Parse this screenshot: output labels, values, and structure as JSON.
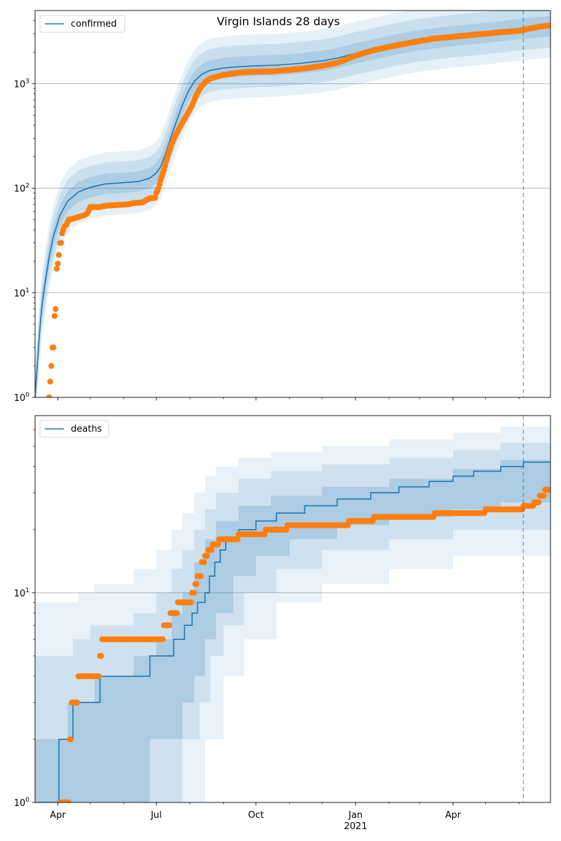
{
  "figure": {
    "title": "Virgin Islands 28 days"
  },
  "colors": {
    "model": "#1f77b4",
    "observed": "#ff7f0e",
    "band": "#1f77b4",
    "grid": "#b0b0b0",
    "vline": "#1f77b4"
  },
  "x_axis": {
    "ticks": [
      {
        "label": "Apr",
        "date": "2020-04-01"
      },
      {
        "label": "Jul",
        "date": "2020-07-01"
      },
      {
        "label": "Oct",
        "date": "2020-10-01"
      },
      {
        "label": "Jan",
        "sublabel": "2021",
        "date": "2021-01-01"
      },
      {
        "label": "Apr",
        "date": "2021-04-01"
      }
    ],
    "range": [
      "2020-03-11",
      "2021-06-30"
    ],
    "forecast_start": "2021-06-05"
  },
  "chart_data": [
    {
      "type": "line",
      "name": "confirmed",
      "legend": "confirmed",
      "legend_position": "top-left",
      "y_scale": "log",
      "ylim": [
        1,
        5000
      ],
      "y_ticks": [
        {
          "value": 1,
          "base": "10",
          "exp": "0"
        },
        {
          "value": 10,
          "base": "10",
          "exp": "1"
        },
        {
          "value": 100,
          "base": "10",
          "exp": "2"
        },
        {
          "value": 1000,
          "base": "10",
          "exp": "3"
        }
      ],
      "grid": "horizontal",
      "model_line": [
        [
          "2020-03-11",
          1
        ],
        [
          "2020-03-13",
          2
        ],
        [
          "2020-03-15",
          4
        ],
        [
          "2020-03-17",
          7
        ],
        [
          "2020-03-20",
          12
        ],
        [
          "2020-03-24",
          22
        ],
        [
          "2020-03-28",
          35
        ],
        [
          "2020-04-03",
          55
        ],
        [
          "2020-04-10",
          75
        ],
        [
          "2020-04-20",
          92
        ],
        [
          "2020-05-01",
          102
        ],
        [
          "2020-05-15",
          110
        ],
        [
          "2020-06-01",
          113
        ],
        [
          "2020-06-15",
          116
        ],
        [
          "2020-06-25",
          125
        ],
        [
          "2020-07-01",
          140
        ],
        [
          "2020-07-05",
          160
        ],
        [
          "2020-07-10",
          220
        ],
        [
          "2020-07-15",
          320
        ],
        [
          "2020-07-20",
          450
        ],
        [
          "2020-07-25",
          620
        ],
        [
          "2020-07-30",
          820
        ],
        [
          "2020-08-05",
          1050
        ],
        [
          "2020-08-12",
          1230
        ],
        [
          "2020-08-20",
          1340
        ],
        [
          "2020-09-01",
          1410
        ],
        [
          "2020-09-15",
          1450
        ],
        [
          "2020-10-01",
          1480
        ],
        [
          "2020-10-20",
          1500
        ],
        [
          "2020-11-10",
          1560
        ],
        [
          "2020-12-01",
          1650
        ],
        [
          "2020-12-15",
          1750
        ],
        [
          "2021-01-01",
          1950
        ],
        [
          "2021-01-20",
          2150
        ],
        [
          "2021-02-10",
          2400
        ],
        [
          "2021-03-01",
          2600
        ],
        [
          "2021-04-01",
          2850
        ],
        [
          "2021-05-01",
          3050
        ],
        [
          "2021-06-05",
          3350
        ],
        [
          "2021-06-30",
          3550
        ]
      ],
      "band_factors": [
        1.25,
        1.6,
        2.0
      ],
      "observed": [
        [
          "2020-03-24",
          1
        ],
        [
          "2020-03-26",
          2
        ],
        [
          "2020-03-27",
          3
        ],
        [
          "2020-03-28",
          3
        ],
        [
          "2020-03-29",
          6
        ],
        [
          "2020-03-30",
          7
        ],
        [
          "2020-03-31",
          17
        ],
        [
          "2020-04-01",
          19
        ],
        [
          "2020-04-02",
          23
        ],
        [
          "2020-04-03",
          30
        ],
        [
          "2020-04-04",
          30
        ],
        [
          "2020-04-05",
          37
        ],
        [
          "2020-04-06",
          40
        ],
        [
          "2020-04-07",
          43
        ],
        [
          "2020-04-09",
          45
        ],
        [
          "2020-04-11",
          50
        ],
        [
          "2020-04-15",
          51
        ],
        [
          "2020-04-20",
          53
        ],
        [
          "2020-04-25",
          55
        ],
        [
          "2020-04-28",
          57
        ],
        [
          "2020-05-01",
          66
        ],
        [
          "2020-05-10",
          66
        ],
        [
          "2020-05-15",
          68
        ],
        [
          "2020-05-25",
          69
        ],
        [
          "2020-06-05",
          70
        ],
        [
          "2020-06-10",
          72
        ],
        [
          "2020-06-18",
          73
        ],
        [
          "2020-06-25",
          80
        ],
        [
          "2020-06-30",
          81
        ],
        [
          "2020-07-01",
          90
        ],
        [
          "2020-07-03",
          100
        ],
        [
          "2020-07-05",
          120
        ],
        [
          "2020-07-08",
          150
        ],
        [
          "2020-07-10",
          180
        ],
        [
          "2020-07-12",
          210
        ],
        [
          "2020-07-15",
          260
        ],
        [
          "2020-07-18",
          310
        ],
        [
          "2020-07-22",
          370
        ],
        [
          "2020-07-26",
          440
        ],
        [
          "2020-07-30",
          520
        ],
        [
          "2020-08-03",
          620
        ],
        [
          "2020-08-07",
          780
        ],
        [
          "2020-08-11",
          920
        ],
        [
          "2020-08-15",
          1030
        ],
        [
          "2020-08-20",
          1120
        ],
        [
          "2020-08-25",
          1160
        ],
        [
          "2020-09-01",
          1210
        ],
        [
          "2020-09-10",
          1250
        ],
        [
          "2020-09-20",
          1290
        ],
        [
          "2020-10-01",
          1300
        ],
        [
          "2020-10-15",
          1310
        ],
        [
          "2020-11-01",
          1350
        ],
        [
          "2020-11-15",
          1400
        ],
        [
          "2020-12-01",
          1480
        ],
        [
          "2020-12-15",
          1580
        ],
        [
          "2021-01-01",
          1850
        ],
        [
          "2021-01-15",
          2050
        ],
        [
          "2021-02-01",
          2250
        ],
        [
          "2021-02-15",
          2400
        ],
        [
          "2021-03-01",
          2550
        ],
        [
          "2021-03-15",
          2700
        ],
        [
          "2021-04-01",
          2800
        ],
        [
          "2021-04-15",
          2900
        ],
        [
          "2021-05-01",
          3000
        ],
        [
          "2021-05-15",
          3100
        ],
        [
          "2021-06-01",
          3200
        ],
        [
          "2021-06-10",
          3350
        ],
        [
          "2021-06-20",
          3500
        ],
        [
          "2021-06-30",
          3600
        ]
      ]
    },
    {
      "type": "line",
      "name": "deaths",
      "legend": "deaths",
      "legend_position": "top-left",
      "y_scale": "log",
      "ylim": [
        1,
        70
      ],
      "y_ticks": [
        {
          "value": 1,
          "base": "10",
          "exp": "0"
        },
        {
          "value": 10,
          "base": "10",
          "exp": "1"
        }
      ],
      "grid": "horizontal",
      "model_steps": [
        [
          "2020-03-11",
          1
        ],
        [
          "2020-04-02",
          2
        ],
        [
          "2020-04-15",
          3
        ],
        [
          "2020-05-10",
          4
        ],
        [
          "2020-06-25",
          5
        ],
        [
          "2020-07-17",
          6
        ],
        [
          "2020-07-27",
          7
        ],
        [
          "2020-08-03",
          8
        ],
        [
          "2020-08-08",
          9
        ],
        [
          "2020-08-15",
          10
        ],
        [
          "2020-08-19",
          12
        ],
        [
          "2020-08-24",
          14
        ],
        [
          "2020-08-29",
          16
        ],
        [
          "2020-09-03",
          18
        ],
        [
          "2020-09-15",
          20
        ],
        [
          "2020-10-01",
          22
        ],
        [
          "2020-10-20",
          24
        ],
        [
          "2020-11-15",
          26
        ],
        [
          "2020-12-15",
          28
        ],
        [
          "2021-01-15",
          30
        ],
        [
          "2021-02-10",
          32
        ],
        [
          "2021-03-10",
          34
        ],
        [
          "2021-04-01",
          36
        ],
        [
          "2021-04-20",
          38
        ],
        [
          "2021-05-15",
          40
        ],
        [
          "2021-06-05",
          42
        ],
        [
          "2021-06-30",
          42
        ]
      ],
      "bands": [
        {
          "opacity": 0.2,
          "lower": [
            [
              "2020-03-11",
              1
            ],
            [
              "2020-06-15",
              1
            ],
            [
              "2020-06-25",
              2
            ],
            [
              "2020-07-25",
              3
            ],
            [
              "2020-08-05",
              4
            ],
            [
              "2020-08-15",
              6
            ],
            [
              "2020-08-25",
              8
            ],
            [
              "2020-09-10",
              12
            ],
            [
              "2020-10-01",
              15
            ],
            [
              "2020-11-01",
              18
            ],
            [
              "2020-12-15",
              21
            ],
            [
              "2021-02-01",
              23
            ],
            [
              "2021-04-01",
              25
            ],
            [
              "2021-05-15",
              27
            ],
            [
              "2021-06-30",
              28
            ]
          ],
          "upper": [
            [
              "2020-03-11",
              2
            ],
            [
              "2020-04-10",
              3
            ],
            [
              "2020-05-05",
              4
            ],
            [
              "2020-06-10",
              5
            ],
            [
              "2020-07-01",
              6
            ],
            [
              "2020-07-15",
              8
            ],
            [
              "2020-07-25",
              10
            ],
            [
              "2020-08-05",
              14
            ],
            [
              "2020-08-15",
              18
            ],
            [
              "2020-08-25",
              22
            ],
            [
              "2020-09-15",
              26
            ],
            [
              "2020-10-15",
              29
            ],
            [
              "2020-12-01",
              32
            ],
            [
              "2021-02-01",
              35
            ],
            [
              "2021-04-01",
              39
            ],
            [
              "2021-05-15",
              43
            ],
            [
              "2021-06-30",
              46
            ]
          ]
        },
        {
          "opacity": 0.12,
          "lower": [
            [
              "2020-03-11",
              1
            ],
            [
              "2020-07-10",
              1
            ],
            [
              "2020-07-25",
              2
            ],
            [
              "2020-08-10",
              3
            ],
            [
              "2020-08-20",
              5
            ],
            [
              "2020-09-01",
              7
            ],
            [
              "2020-09-20",
              10
            ],
            [
              "2020-10-20",
              13
            ],
            [
              "2020-12-01",
              16
            ],
            [
              "2021-02-01",
              18
            ],
            [
              "2021-04-01",
              20
            ],
            [
              "2021-06-30",
              22
            ]
          ],
          "upper": [
            [
              "2020-03-11",
              5
            ],
            [
              "2020-04-15",
              6
            ],
            [
              "2020-05-01",
              7
            ],
            [
              "2020-06-10",
              8
            ],
            [
              "2020-07-01",
              10
            ],
            [
              "2020-07-15",
              13
            ],
            [
              "2020-07-25",
              16
            ],
            [
              "2020-08-05",
              20
            ],
            [
              "2020-08-15",
              25
            ],
            [
              "2020-08-25",
              30
            ],
            [
              "2020-09-15",
              35
            ],
            [
              "2020-10-15",
              38
            ],
            [
              "2020-12-01",
              41
            ],
            [
              "2021-02-01",
              44
            ],
            [
              "2021-04-01",
              48
            ],
            [
              "2021-05-15",
              52
            ],
            [
              "2021-06-30",
              56
            ]
          ]
        },
        {
          "opacity": 0.1,
          "lower": [
            [
              "2020-03-11",
              1
            ],
            [
              "2020-07-25",
              1
            ],
            [
              "2020-08-15",
              2
            ],
            [
              "2020-09-01",
              4
            ],
            [
              "2020-09-20",
              6
            ],
            [
              "2020-10-20",
              9
            ],
            [
              "2020-12-01",
              11
            ],
            [
              "2021-02-01",
              13
            ],
            [
              "2021-04-01",
              15
            ],
            [
              "2021-06-30",
              17
            ]
          ],
          "upper": [
            [
              "2020-03-11",
              9
            ],
            [
              "2020-04-20",
              10
            ],
            [
              "2020-05-05",
              11
            ],
            [
              "2020-06-10",
              13
            ],
            [
              "2020-07-01",
              16
            ],
            [
              "2020-07-15",
              20
            ],
            [
              "2020-07-25",
              24
            ],
            [
              "2020-08-05",
              30
            ],
            [
              "2020-08-15",
              36
            ],
            [
              "2020-08-25",
              40
            ],
            [
              "2020-09-15",
              44
            ],
            [
              "2020-10-15",
              47
            ],
            [
              "2020-12-01",
              50
            ],
            [
              "2021-02-01",
              54
            ],
            [
              "2021-04-01",
              58
            ],
            [
              "2021-05-15",
              62
            ],
            [
              "2021-06-30",
              68
            ]
          ]
        }
      ],
      "observed_steps": [
        [
          "2020-04-03",
          1
        ],
        [
          "2020-04-12",
          2
        ],
        [
          "2020-04-14",
          3
        ],
        [
          "2020-04-20",
          4
        ],
        [
          "2020-05-10",
          5
        ],
        [
          "2020-05-12",
          6
        ],
        [
          "2020-07-08",
          7
        ],
        [
          "2020-07-14",
          8
        ],
        [
          "2020-07-21",
          9
        ],
        [
          "2020-08-03",
          10
        ],
        [
          "2020-08-06",
          11
        ],
        [
          "2020-08-08",
          12
        ],
        [
          "2020-08-12",
          14
        ],
        [
          "2020-08-15",
          15
        ],
        [
          "2020-08-18",
          16
        ],
        [
          "2020-08-22",
          17
        ],
        [
          "2020-08-28",
          18
        ],
        [
          "2020-09-15",
          19
        ],
        [
          "2020-10-10",
          20
        ],
        [
          "2020-10-30",
          21
        ],
        [
          "2020-12-26",
          22
        ],
        [
          "2021-01-18",
          23
        ],
        [
          "2021-03-15",
          24
        ],
        [
          "2021-05-01",
          25
        ],
        [
          "2021-06-05",
          26
        ],
        [
          "2021-06-15",
          27
        ],
        [
          "2021-06-20",
          29
        ],
        [
          "2021-06-25",
          31
        ]
      ]
    }
  ]
}
